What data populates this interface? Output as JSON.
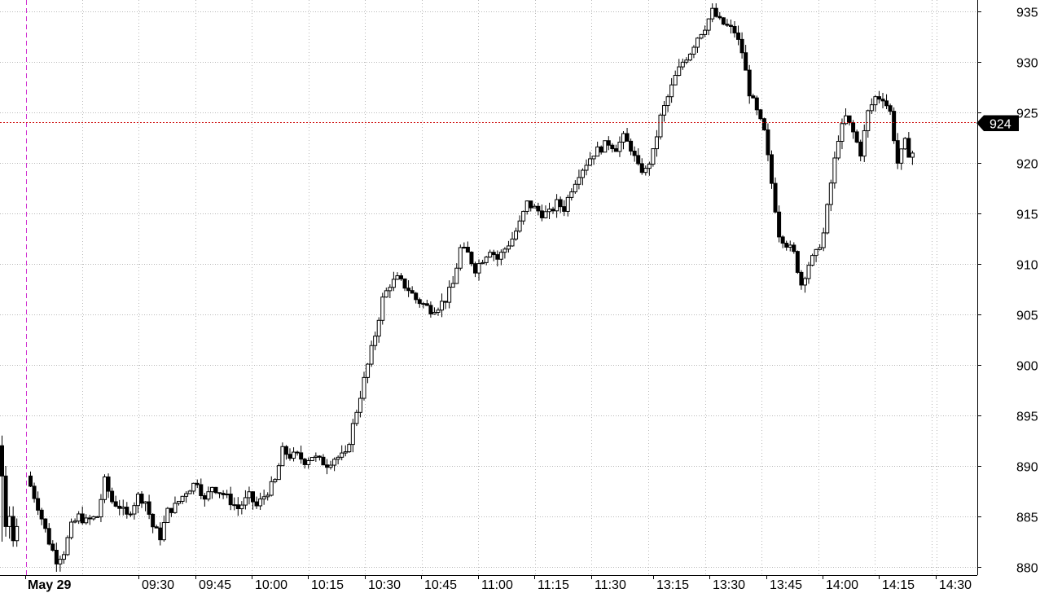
{
  "chart_data": {
    "type": "candlestick",
    "date_label": "May 29",
    "x_tick_labels": [
      "09:30",
      "09:45",
      "10:00",
      "10:15",
      "10:30",
      "10:45",
      "11:00",
      "11:15",
      "11:30",
      "13:15",
      "13:30",
      "13:45",
      "14:00",
      "14:15",
      "14:30"
    ],
    "y_tick_labels": [
      "935",
      "930",
      "925",
      "920",
      "915",
      "910",
      "905",
      "900",
      "895",
      "890",
      "885",
      "880"
    ],
    "y_ticks": [
      935,
      930,
      925,
      920,
      915,
      910,
      905,
      900,
      895,
      890,
      885,
      880
    ],
    "ylim": [
      879,
      935.8
    ],
    "grid": true,
    "current_price": 924,
    "current_price_label": "924",
    "up_color": "#ffffff",
    "down_color": "#000000",
    "session_marker_color": "#d030d0",
    "price_line_color": "#cc0000",
    "candle_count": 250,
    "close_path": [
      [
        0,
        889
      ],
      [
        3,
        886
      ],
      [
        6,
        882.5
      ],
      [
        8,
        880.7
      ],
      [
        10,
        881.5
      ],
      [
        12,
        884
      ],
      [
        14,
        885
      ],
      [
        16,
        884.5
      ],
      [
        19,
        885
      ],
      [
        21,
        888.5
      ],
      [
        23,
        886.5
      ],
      [
        25,
        886
      ],
      [
        27,
        885
      ],
      [
        30,
        887
      ],
      [
        32,
        886.5
      ],
      [
        34,
        884
      ],
      [
        36,
        883
      ],
      [
        38,
        885.5
      ],
      [
        40,
        886
      ],
      [
        43,
        887.5
      ],
      [
        46,
        888.5
      ],
      [
        48,
        886.5
      ],
      [
        50,
        888
      ],
      [
        53,
        887.2
      ],
      [
        55,
        886.5
      ],
      [
        57,
        885.8
      ],
      [
        60,
        887
      ],
      [
        62,
        886
      ],
      [
        64,
        887
      ],
      [
        67,
        888.5
      ],
      [
        69,
        891.5
      ],
      [
        71,
        891
      ],
      [
        73,
        891
      ],
      [
        75,
        890.5
      ],
      [
        77,
        891
      ],
      [
        79,
        890.5
      ],
      [
        81,
        890.2
      ],
      [
        83,
        890.8
      ],
      [
        86,
        891
      ],
      [
        88,
        894
      ],
      [
        90,
        897
      ],
      [
        92,
        900
      ],
      [
        94,
        903
      ],
      [
        96,
        906.5
      ],
      [
        98,
        908
      ],
      [
        100,
        908.5
      ],
      [
        103,
        907.5
      ],
      [
        105,
        906.5
      ],
      [
        107,
        906
      ],
      [
        109,
        905.5
      ],
      [
        111,
        905.8
      ],
      [
        113,
        906.5
      ],
      [
        115,
        908
      ],
      [
        117,
        911.5
      ],
      [
        119,
        911
      ],
      [
        121,
        909.5
      ],
      [
        123,
        910.5
      ],
      [
        125,
        911.5
      ],
      [
        127,
        910.5
      ],
      [
        129,
        911.5
      ],
      [
        131,
        912.5
      ],
      [
        133,
        914
      ],
      [
        135,
        916
      ],
      [
        137,
        915.5
      ],
      [
        139,
        915
      ],
      [
        141,
        915
      ],
      [
        143,
        916
      ],
      [
        145,
        915.5
      ],
      [
        147,
        917.5
      ],
      [
        149,
        919
      ],
      [
        151,
        920
      ],
      [
        153,
        921
      ],
      [
        155,
        921.5
      ],
      [
        157,
        922
      ],
      [
        159,
        921.5
      ],
      [
        161,
        922.5
      ],
      [
        163,
        921.5
      ],
      [
        165,
        919.5
      ],
      [
        167,
        919.2
      ],
      [
        169,
        921
      ],
      [
        171,
        924.5
      ],
      [
        173,
        926.5
      ],
      [
        175,
        928.5
      ],
      [
        177,
        930
      ],
      [
        179,
        931
      ],
      [
        181,
        932.5
      ],
      [
        183,
        933.5
      ],
      [
        185,
        935
      ],
      [
        187,
        934
      ],
      [
        189,
        933.5
      ],
      [
        191,
        933
      ],
      [
        193,
        931
      ],
      [
        195,
        927
      ],
      [
        197,
        925
      ],
      [
        199,
        923
      ],
      [
        201,
        918
      ],
      [
        203,
        913
      ],
      [
        205,
        912
      ],
      [
        207,
        911
      ],
      [
        209,
        908
      ],
      [
        211,
        910
      ],
      [
        213,
        911
      ],
      [
        215,
        913
      ],
      [
        217,
        918
      ],
      [
        219,
        922.5
      ],
      [
        221,
        924.5
      ],
      [
        223,
        923
      ],
      [
        225,
        921
      ],
      [
        227,
        925
      ],
      [
        229,
        926.5
      ],
      [
        231,
        926.5
      ],
      [
        233,
        925
      ],
      [
        235,
        920
      ],
      [
        237,
        922
      ],
      [
        238,
        921
      ]
    ],
    "close_path_indices_note_hidden": null
  }
}
